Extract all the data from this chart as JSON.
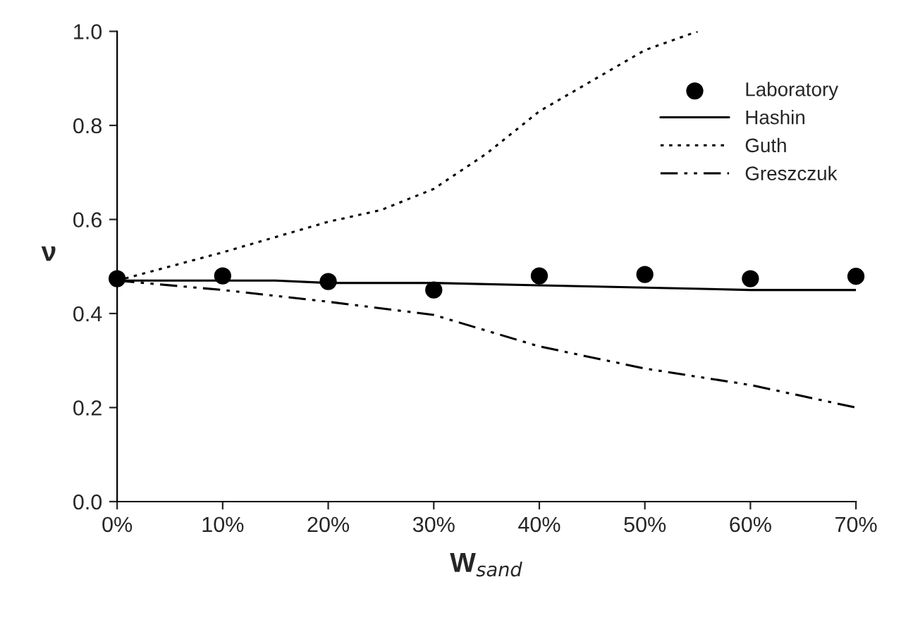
{
  "chart_data": {
    "type": "line",
    "xlabel": "W$_{sand}$",
    "ylabel": "ν",
    "xlim": [
      0,
      70
    ],
    "xticks": [
      {
        "value": 0,
        "label": "0%"
      },
      {
        "value": 10,
        "label": "10%"
      },
      {
        "value": 20,
        "label": "20%"
      },
      {
        "value": 30,
        "label": "30%"
      },
      {
        "value": 40,
        "label": "40%"
      },
      {
        "value": 50,
        "label": "50%"
      },
      {
        "value": 60,
        "label": "60%"
      },
      {
        "value": 70,
        "label": "70%"
      }
    ],
    "ylim": [
      0,
      1.0
    ],
    "yticks": [
      {
        "value": 0,
        "label": "0.0"
      },
      {
        "value": 0.2,
        "label": "0.2"
      },
      {
        "value": 0.4,
        "label": "0.4"
      },
      {
        "value": 0.6,
        "label": "0.6"
      },
      {
        "value": 0.8,
        "label": "0.8"
      },
      {
        "value": 1.0,
        "label": "1.0"
      }
    ],
    "grid": false,
    "legend": "top right",
    "series": [
      {
        "name": "Laboratory",
        "type": "scatter",
        "marker": "circle",
        "color": "#000000",
        "x": [
          0,
          10,
          20,
          30,
          40,
          50,
          60,
          70
        ],
        "values": [
          0.474,
          0.48,
          0.468,
          0.45,
          0.48,
          0.483,
          0.474,
          0.479
        ]
      },
      {
        "name": "Hashin",
        "line_style": "solid",
        "color": "#000000",
        "x": [
          0,
          10,
          15,
          20,
          30,
          40,
          50,
          60,
          70
        ],
        "values": [
          0.47,
          0.47,
          0.47,
          0.465,
          0.465,
          0.46,
          0.455,
          0.45,
          0.45
        ]
      },
      {
        "name": "Guth",
        "line_style": "dotted",
        "color": "#000000",
        "x": [
          0,
          10,
          20,
          25,
          30,
          35,
          40,
          50,
          55
        ],
        "values": [
          0.47,
          0.53,
          0.595,
          0.62,
          0.665,
          0.74,
          0.83,
          0.96,
          1.0
        ]
      },
      {
        "name": "Greszczuk",
        "line_style": "dashdotdot",
        "color": "#000000",
        "x": [
          0,
          10,
          20,
          30,
          40,
          50,
          60,
          70
        ],
        "values": [
          0.47,
          0.45,
          0.425,
          0.397,
          0.33,
          0.283,
          0.248,
          0.2
        ]
      }
    ]
  }
}
